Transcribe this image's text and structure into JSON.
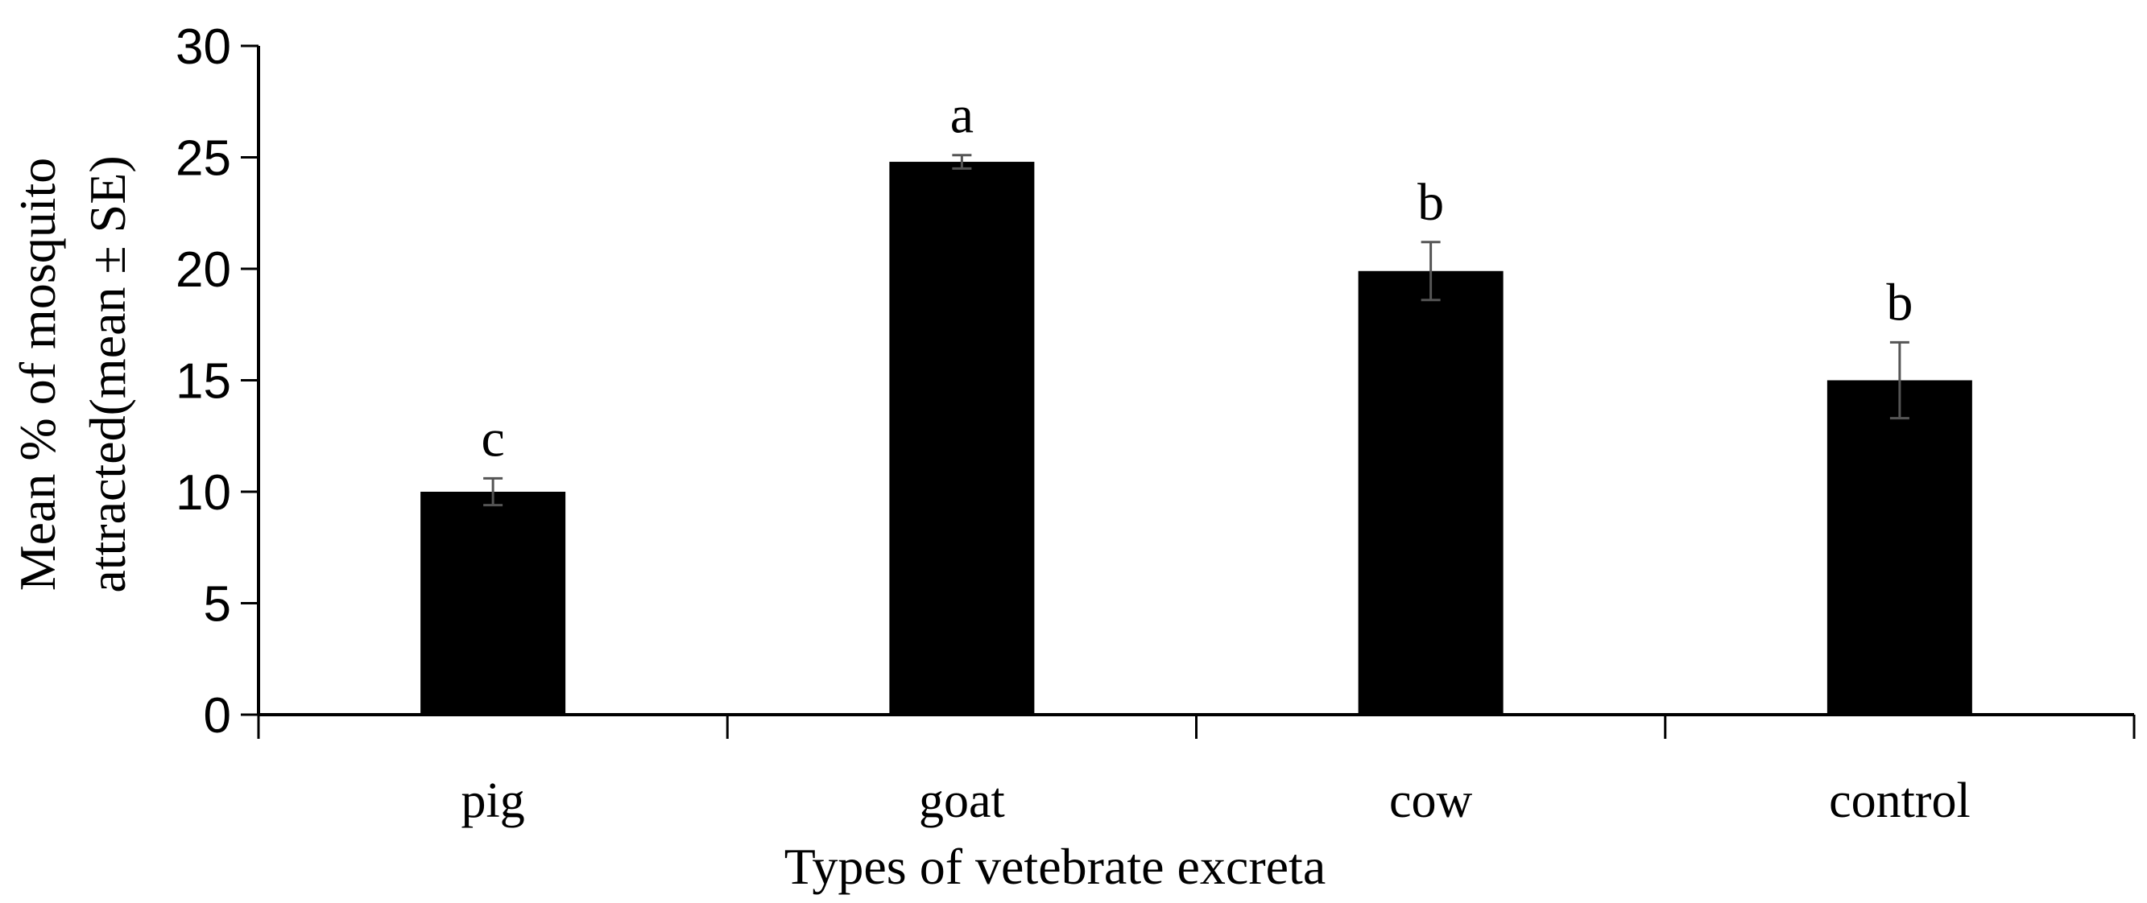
{
  "chart_data": {
    "type": "bar",
    "categories": [
      "pig",
      "goat",
      "cow",
      "control"
    ],
    "values": [
      10.0,
      24.8,
      19.9,
      15.0
    ],
    "errors": [
      0.6,
      0.3,
      1.3,
      1.7
    ],
    "significance": [
      "c",
      "a",
      "b",
      "b"
    ],
    "xlabel": "Types of vetebrate excreta",
    "ylabel_line1": "Mean % of mosquito",
    "ylabel_line2": "attracted(mean ± SE)",
    "ylim": [
      0,
      30
    ],
    "yticks": [
      "0",
      "5",
      "10",
      "15",
      "20",
      "25",
      "30"
    ],
    "grid": false,
    "bar_color": "#000000",
    "error_bar_color": "#555555"
  }
}
